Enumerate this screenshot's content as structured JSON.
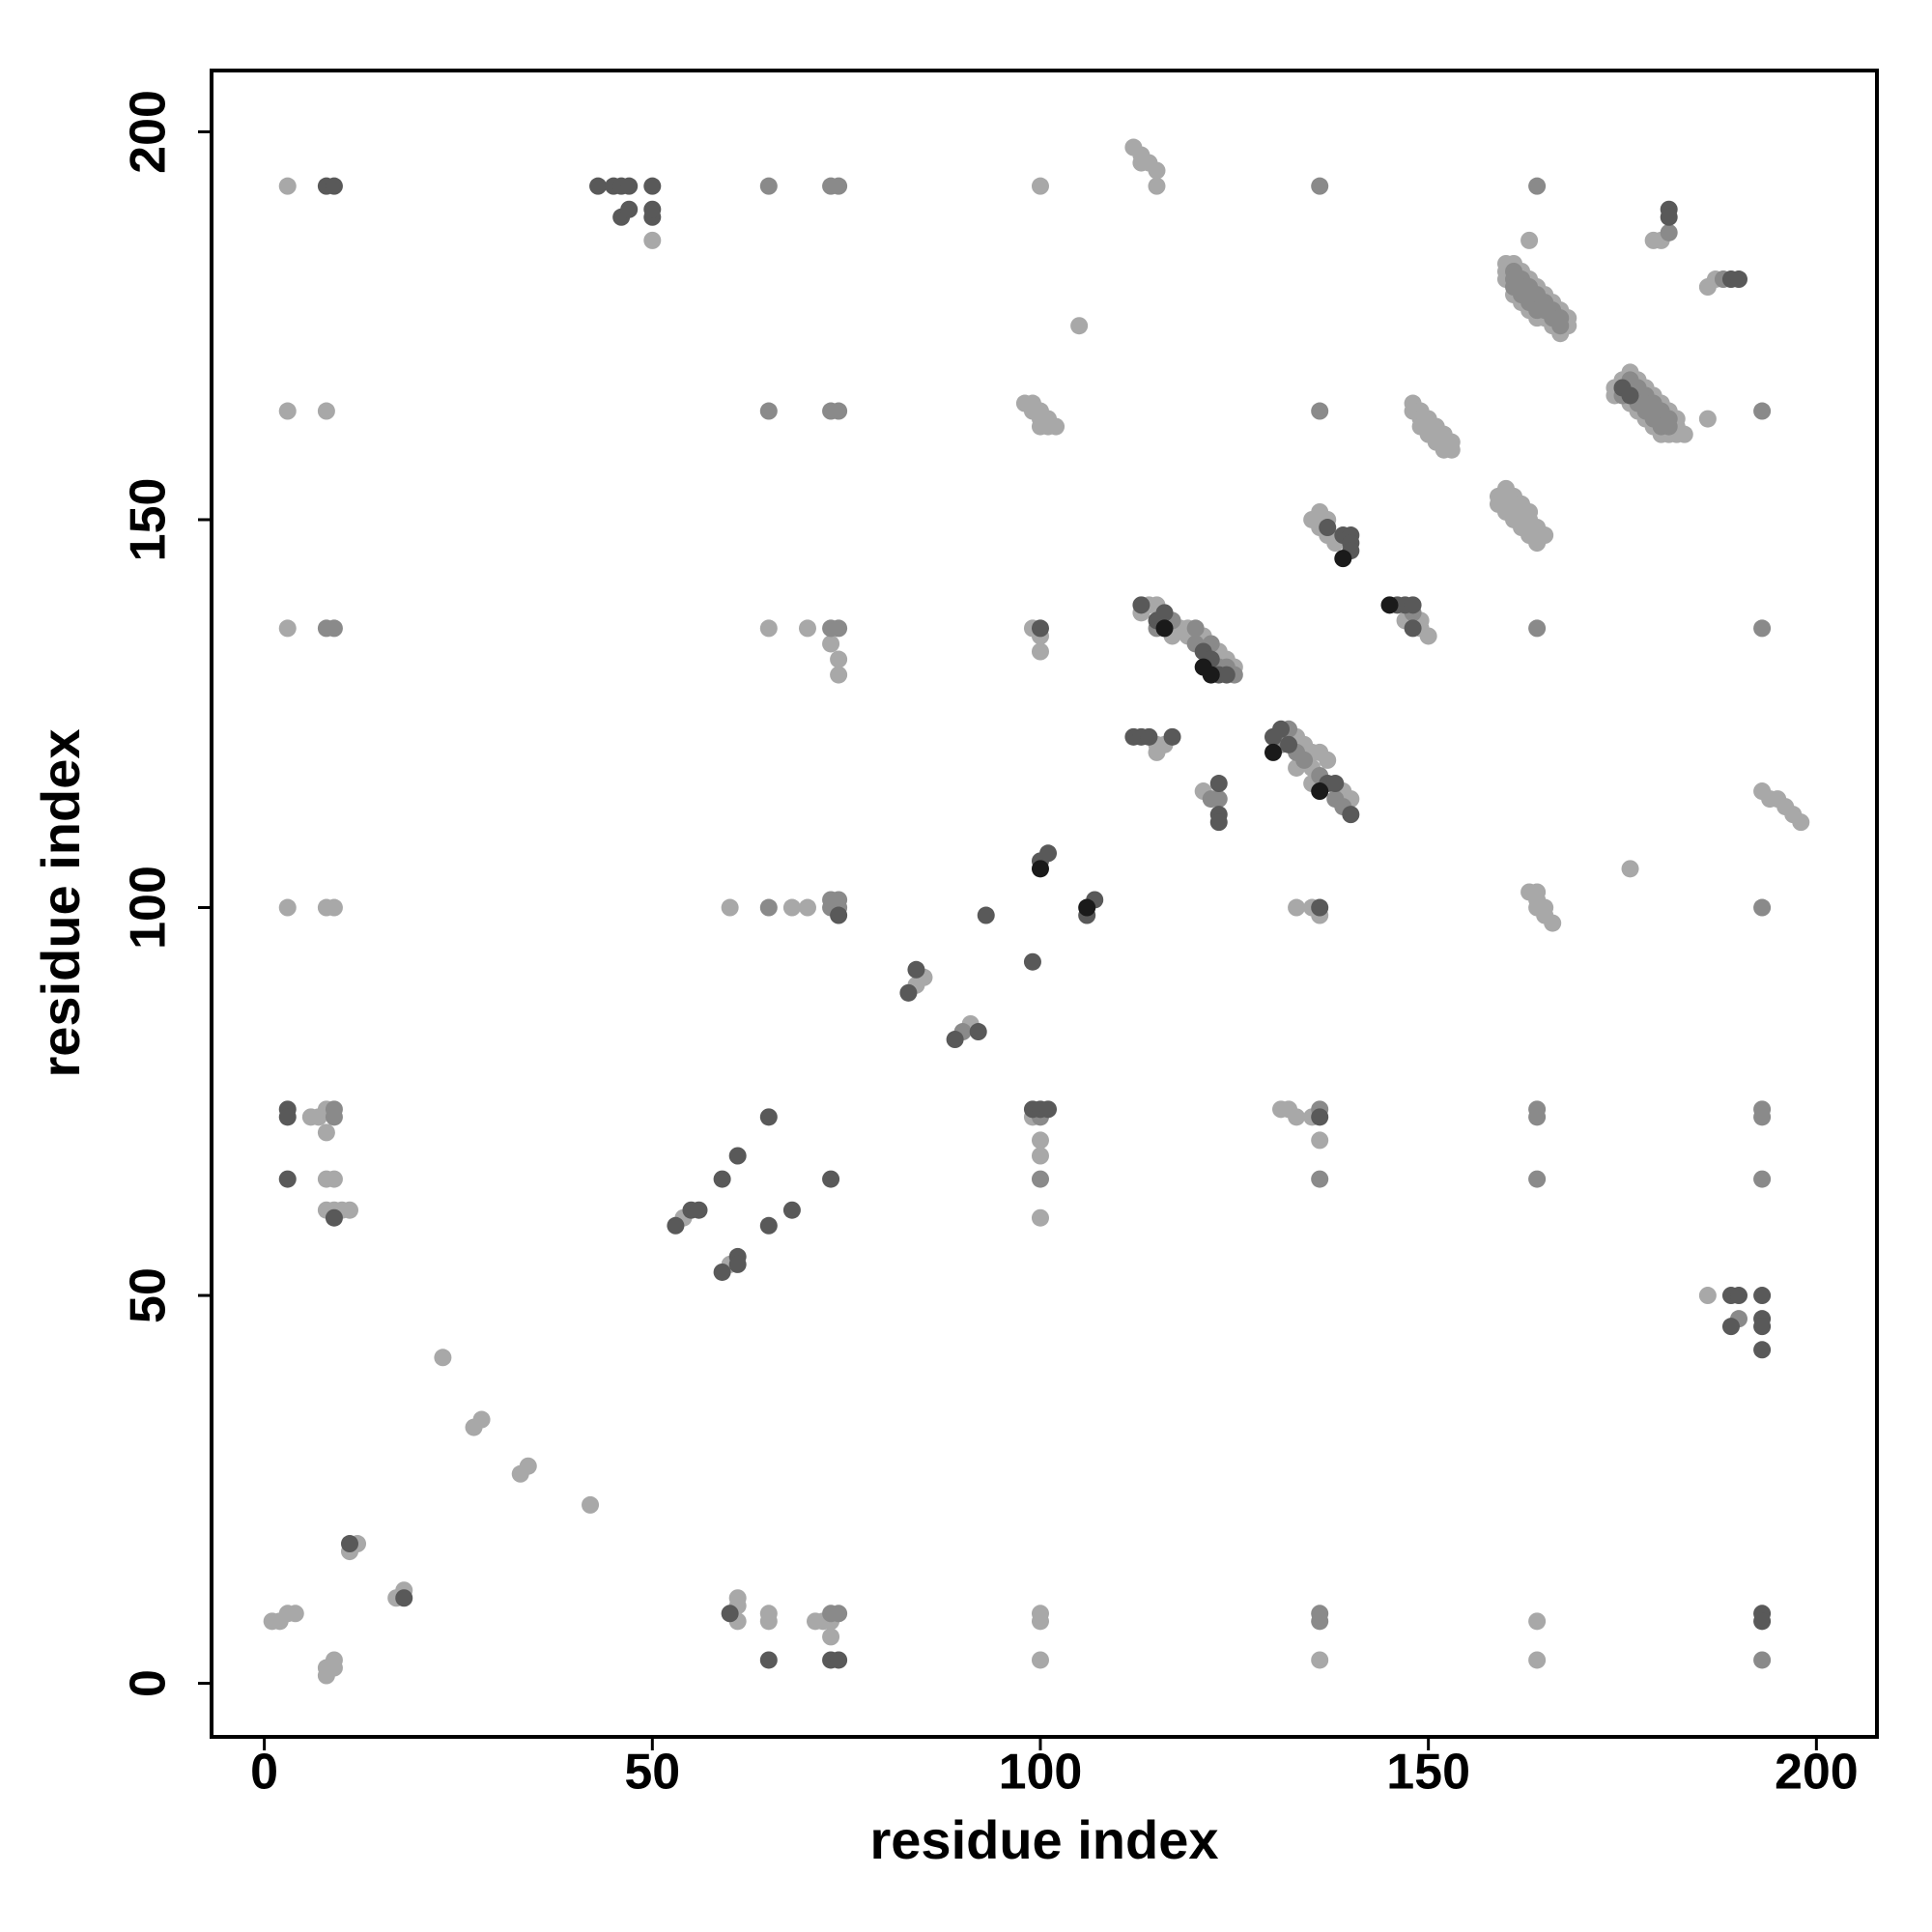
{
  "chart_data": {
    "type": "scatter",
    "xlabel": "residue index",
    "ylabel": "residue index",
    "xlim": [
      -6.8,
      207.8
    ],
    "ylim": [
      -6.9,
      207.9
    ],
    "xticks": [
      0,
      50,
      100,
      150,
      200
    ],
    "yticks": [
      0,
      50,
      100,
      150,
      200
    ],
    "grid": false,
    "series": [
      {
        "color": "#a8a8a8",
        "x": [
          3,
          50,
          100,
          112,
          113,
          113,
          114,
          115,
          115,
          105,
          180,
          179,
          186,
          187,
          3,
          8,
          160,
          160,
          160,
          161,
          161,
          162,
          162,
          163,
          163,
          163,
          164,
          164,
          165,
          165,
          166,
          166,
          167,
          167,
          168,
          168,
          174,
          174,
          175,
          176,
          176,
          177,
          177,
          178,
          178,
          179,
          179,
          180,
          180,
          181,
          181,
          182,
          182,
          182,
          183,
          186,
          98,
          99,
          99,
          100,
          100,
          101,
          101,
          102,
          100,
          148,
          148,
          149,
          149,
          149,
          150,
          150,
          150,
          151,
          151,
          151,
          152,
          152,
          152,
          153,
          153,
          159,
          159,
          160,
          160,
          160,
          160,
          161,
          161,
          161,
          161,
          162,
          162,
          162,
          162,
          163,
          163,
          163,
          163,
          164,
          164,
          164,
          165,
          135,
          136,
          136,
          137,
          137,
          138,
          3,
          65,
          70,
          73,
          74,
          74,
          99,
          100,
          100,
          113,
          114,
          115,
          117,
          118,
          119,
          119,
          121,
          123,
          124,
          125,
          147,
          149,
          150,
          149,
          115,
          116,
          115,
          133,
          134,
          135,
          135,
          136,
          137,
          139,
          140,
          135,
          133,
          121,
          193,
          194,
          195,
          196,
          197,
          198,
          176,
          163,
          164,
          164,
          165,
          165,
          166,
          164,
          3,
          8,
          9,
          60,
          68,
          70,
          133,
          135,
          136,
          84,
          85,
          91,
          6,
          7,
          8,
          8,
          99,
          100,
          100,
          100,
          131,
          132,
          133,
          135,
          136,
          8,
          9,
          8,
          9,
          10,
          11,
          54,
          60,
          186,
          23,
          27,
          28,
          33,
          34,
          42,
          12,
          11,
          17,
          18,
          1,
          2,
          3,
          4,
          8,
          8,
          9,
          9,
          61,
          61,
          61,
          65,
          65,
          71,
          72,
          73,
          73,
          100,
          100,
          164,
          100,
          136,
          164
        ],
        "y": [
          193,
          186,
          193,
          198,
          197,
          196,
          196,
          195,
          193,
          175,
          186,
          186,
          180,
          181,
          164,
          164,
          183,
          182,
          181,
          183,
          179,
          182,
          178,
          181,
          177,
          186,
          180,
          176,
          179,
          176,
          178,
          175,
          177,
          174,
          176,
          175,
          167,
          166,
          168,
          169,
          165,
          168,
          164,
          167,
          163,
          166,
          162,
          165,
          161,
          164,
          161,
          163,
          162,
          161,
          161,
          163,
          165,
          164,
          165,
          164,
          163,
          163,
          162,
          162,
          162,
          165,
          164,
          164,
          163,
          162,
          163,
          162,
          161,
          162,
          161,
          160,
          161,
          160,
          159,
          160,
          159,
          153,
          152,
          154,
          153,
          152,
          151,
          153,
          152,
          151,
          150,
          152,
          151,
          150,
          149,
          151,
          150,
          149,
          148,
          149,
          148,
          147,
          148,
          150,
          151,
          149,
          150,
          148,
          147,
          136,
          136,
          136,
          134,
          132,
          130,
          136,
          135,
          133,
          138,
          139,
          139,
          135,
          136,
          136,
          135,
          135,
          133,
          132,
          131,
          137,
          136,
          135,
          137,
          121,
          121,
          120,
          122,
          121,
          120,
          118,
          120,
          119,
          115,
          114,
          116,
          118,
          115,
          115,
          114,
          114,
          113,
          112,
          111,
          105,
          102,
          102,
          101,
          100,
          99,
          98,
          100,
          100,
          100,
          100,
          100,
          100,
          100,
          100,
          100,
          99,
          90,
          91,
          85,
          73,
          73,
          74,
          71,
          73,
          70,
          68,
          60,
          74,
          74,
          73,
          73,
          70,
          65,
          65,
          61,
          61,
          61,
          61,
          60,
          54,
          50,
          42,
          33,
          34,
          27,
          28,
          23,
          18,
          17,
          11,
          12,
          8,
          8,
          9,
          9,
          1,
          2,
          2,
          3,
          11,
          10,
          8,
          9,
          8,
          8,
          8,
          8,
          6,
          9,
          8,
          8,
          3,
          3,
          3
        ]
      },
      {
        "color": "#8a8a8a",
        "x": [
          65,
          73,
          74,
          136,
          164,
          181,
          188,
          65,
          73,
          74,
          136,
          193,
          161,
          161,
          161,
          162,
          162,
          162,
          163,
          163,
          163,
          164,
          164,
          164,
          165,
          165,
          166,
          166,
          167,
          167,
          176,
          176,
          177,
          177,
          177,
          178,
          178,
          178,
          179,
          179,
          179,
          180,
          180,
          180,
          181,
          181,
          175,
          8,
          9,
          73,
          74,
          164,
          193,
          117,
          120,
          120,
          122,
          123,
          124,
          125,
          115,
          148,
          131,
          132,
          133,
          134,
          136,
          138,
          139,
          122,
          123,
          65,
          73,
          74,
          74,
          73,
          193,
          90,
          9,
          9,
          100,
          100,
          136,
          136,
          164,
          164,
          164,
          193,
          193,
          193,
          190,
          73,
          74,
          136,
          136,
          193
        ],
        "y": [
          193,
          193,
          193,
          193,
          193,
          187,
          181,
          164,
          164,
          164,
          164,
          164,
          182,
          181,
          180,
          181,
          180,
          179,
          180,
          179,
          178,
          179,
          178,
          177,
          178,
          177,
          177,
          176,
          176,
          175,
          168,
          167,
          167,
          166,
          165,
          166,
          165,
          164,
          165,
          164,
          163,
          164,
          163,
          162,
          163,
          162,
          166,
          136,
          136,
          136,
          136,
          136,
          136,
          137,
          136,
          134,
          134,
          131,
          131,
          130,
          136,
          138,
          121,
          123,
          120,
          119,
          117,
          114,
          113,
          114,
          114,
          100,
          100,
          100,
          101,
          101,
          100,
          84,
          73,
          74,
          73,
          65,
          74,
          65,
          74,
          73,
          65,
          74,
          73,
          65,
          47,
          9,
          9,
          9,
          8,
          3
        ]
      },
      {
        "color": "#595959",
        "x": [
          8,
          9,
          43,
          45,
          46,
          47,
          50,
          46,
          47,
          50,
          50,
          181,
          181,
          189,
          190,
          175,
          176,
          100,
          113,
          115,
          116,
          121,
          122,
          123,
          124,
          146,
          147,
          148,
          148,
          139,
          140,
          140,
          140,
          137,
          112,
          113,
          114,
          117,
          130,
          131,
          132,
          137,
          138,
          140,
          123,
          123,
          123,
          74,
          136,
          100,
          101,
          106,
          107,
          93,
          99,
          83,
          84,
          89,
          92,
          3,
          3,
          65,
          99,
          100,
          101,
          136,
          3,
          73,
          59,
          61,
          9,
          53,
          55,
          56,
          65,
          68,
          59,
          61,
          61,
          189,
          190,
          193,
          189,
          193,
          193,
          193,
          11,
          18,
          60,
          193,
          193,
          65,
          73,
          74
        ],
        "y": [
          193,
          193,
          193,
          193,
          193,
          193,
          193,
          189,
          190,
          189,
          190,
          190,
          189,
          181,
          181,
          167,
          166,
          136,
          139,
          137,
          138,
          133,
          132,
          130,
          130,
          139,
          139,
          139,
          136,
          148,
          148,
          147,
          146,
          149,
          122,
          122,
          122,
          122,
          122,
          123,
          121,
          116,
          116,
          112,
          116,
          112,
          111,
          99,
          100,
          106,
          107,
          99,
          101,
          99,
          93,
          89,
          92,
          83,
          84,
          74,
          73,
          73,
          74,
          74,
          74,
          73,
          65,
          65,
          65,
          68,
          60,
          59,
          61,
          61,
          59,
          61,
          53,
          55,
          54,
          50,
          50,
          50,
          46,
          47,
          46,
          43,
          18,
          11,
          9,
          9,
          8,
          3,
          3,
          3
        ]
      },
      {
        "color": "#1a1a1a",
        "x": [
          116,
          121,
          122,
          139,
          145,
          130,
          136,
          100,
          106
        ],
        "y": [
          136,
          131,
          130,
          145,
          139,
          120,
          115,
          105,
          100
        ]
      }
    ]
  }
}
